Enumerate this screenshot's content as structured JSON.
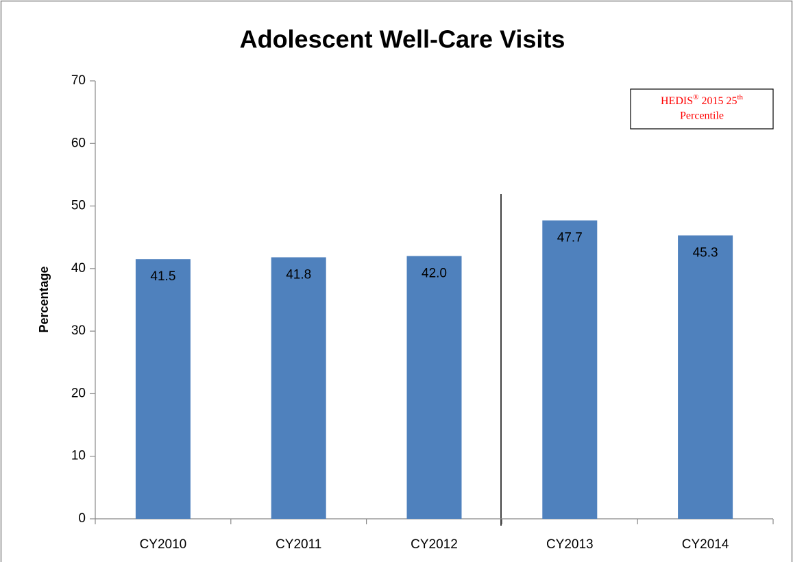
{
  "chart_data": {
    "type": "bar",
    "title": "Adolescent Well-Care Visits",
    "y_label": "Percentage",
    "categories": [
      "CY2010",
      "CY2011",
      "CY2012",
      "CY2013",
      "CY2014"
    ],
    "values": [
      41.5,
      41.8,
      42.0,
      47.7,
      45.3
    ],
    "value_labels": [
      "41.5",
      "41.8",
      "42.0",
      "47.7",
      "45.3"
    ],
    "color": "#4f81bd",
    "ylim": [
      0,
      70
    ],
    "yticks": [
      0,
      10,
      20,
      30,
      40,
      50,
      60,
      70
    ],
    "grid": false,
    "annotation": {
      "line1": [
        "HEDIS",
        "®",
        " 2015 25",
        "th"
      ],
      "line2": "Percentile",
      "color": "#ff0000"
    }
  }
}
